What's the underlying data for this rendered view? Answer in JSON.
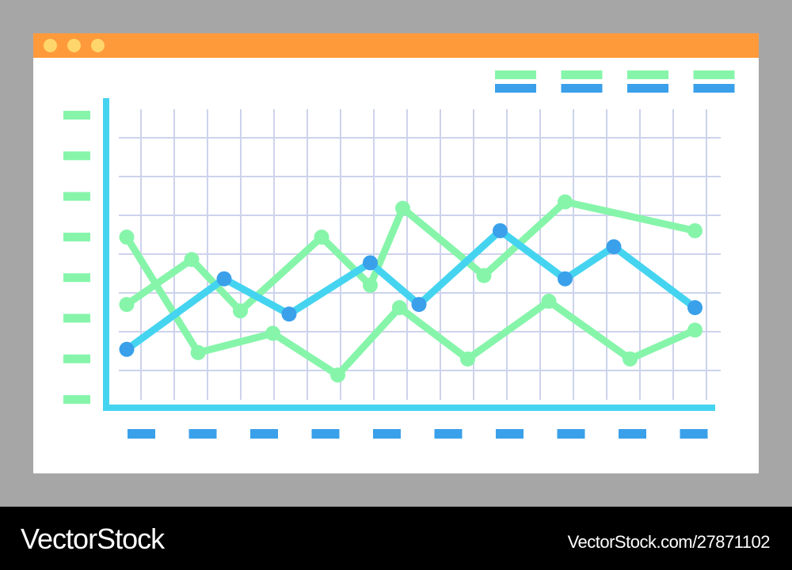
{
  "window": {
    "titlebar_color": "#ff9a3b",
    "controls": [
      {
        "name": "window-dot-1",
        "color": "#ffd66b"
      },
      {
        "name": "window-dot-2",
        "color": "#ffd66b"
      },
      {
        "name": "window-dot-3",
        "color": "#ffd66b"
      }
    ]
  },
  "chart_data": {
    "type": "line",
    "title": "",
    "xlabel": "",
    "ylabel": "",
    "tick_labels_shown_as": "placeholder-bars",
    "grid": true,
    "legend_position": "top-right",
    "legend_entries": 4,
    "x_tick_count": 10,
    "y_tick_count": 8,
    "xlim": [
      0,
      18
    ],
    "ylim": [
      0,
      8
    ],
    "axis_color": "#45d4f0",
    "grid_color": "#cdd3ec",
    "series": [
      {
        "color": "#45d4f0",
        "marker_color": "#3aa0ea",
        "points": [
          [
            0,
            1.4
          ],
          [
            3,
            3.6
          ],
          [
            5,
            2.5
          ],
          [
            7.5,
            4.1
          ],
          [
            9,
            2.8
          ],
          [
            11.5,
            5.1
          ],
          [
            13.5,
            3.6
          ],
          [
            15,
            4.6
          ],
          [
            17.5,
            2.7
          ]
        ]
      },
      {
        "color": "#86f5aa",
        "marker_color": "#86f5aa",
        "points": [
          [
            0,
            2.8
          ],
          [
            2,
            4.2
          ],
          [
            3.5,
            2.6
          ],
          [
            6,
            4.9
          ],
          [
            7.5,
            3.4
          ],
          [
            8.5,
            5.8
          ],
          [
            11,
            3.7
          ],
          [
            13.5,
            6.0
          ],
          [
            17.5,
            5.1
          ]
        ]
      },
      {
        "color": "#86f5aa",
        "marker_color": "#86f5aa",
        "points": [
          [
            0,
            4.9
          ],
          [
            2.2,
            1.3
          ],
          [
            4.5,
            1.9
          ],
          [
            6.5,
            0.6
          ],
          [
            8.4,
            2.7
          ],
          [
            10.5,
            1.1
          ],
          [
            13,
            2.9
          ],
          [
            15.5,
            1.1
          ],
          [
            17.5,
            2.0
          ]
        ]
      }
    ]
  },
  "footer": {
    "brand": "VectorStock",
    "image_id": "VectorStock.com/27871102"
  }
}
